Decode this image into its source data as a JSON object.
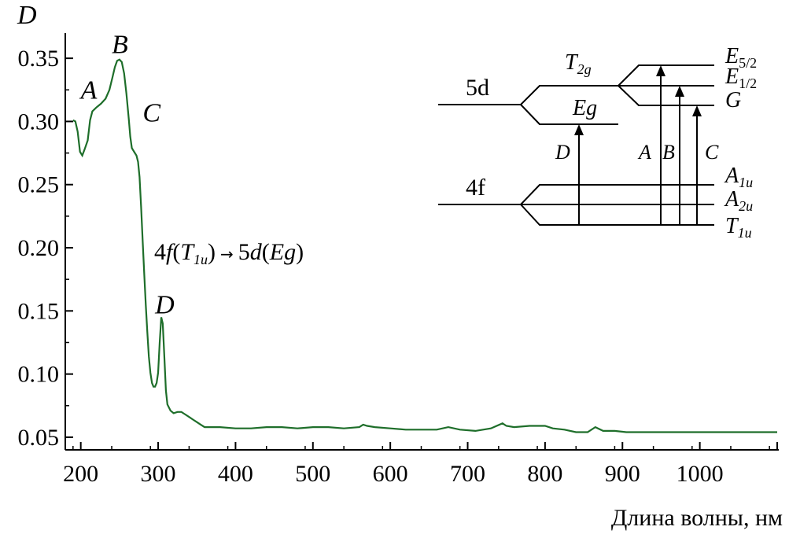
{
  "chart_data": {
    "type": "line",
    "ylabel": "D",
    "xlabel": "Длина волны, нм",
    "xlim": [
      180,
      1100
    ],
    "ylim": [
      0.04,
      0.37
    ],
    "x_ticks": [
      200,
      300,
      400,
      500,
      600,
      700,
      800,
      900,
      1000,
      1100
    ],
    "x_tick_labels": [
      "200",
      "300",
      "400",
      "500",
      "600",
      "700",
      "800",
      "900",
      "1000",
      ""
    ],
    "y_ticks": [
      0.05,
      0.1,
      0.15,
      0.2,
      0.25,
      0.3,
      0.35
    ],
    "y_tick_labels": [
      "0.05",
      "0.10",
      "0.15",
      "0.20",
      "0.25",
      "0.30",
      "0.35"
    ],
    "line_color": "#1e6e2a",
    "series": [
      {
        "points": [
          [
            190,
            0.301
          ],
          [
            193,
            0.3
          ],
          [
            196,
            0.292
          ],
          [
            199,
            0.276
          ],
          [
            202,
            0.273
          ],
          [
            205,
            0.278
          ],
          [
            209,
            0.285
          ],
          [
            212,
            0.301
          ],
          [
            215,
            0.308
          ],
          [
            220,
            0.311
          ],
          [
            226,
            0.314
          ],
          [
            232,
            0.318
          ],
          [
            237,
            0.325
          ],
          [
            241,
            0.335
          ],
          [
            244,
            0.343
          ],
          [
            247,
            0.348
          ],
          [
            250,
            0.349
          ],
          [
            253,
            0.347
          ],
          [
            256,
            0.338
          ],
          [
            259,
            0.322
          ],
          [
            262,
            0.302
          ],
          [
            264,
            0.288
          ],
          [
            266,
            0.279
          ],
          [
            269,
            0.276
          ],
          [
            272,
            0.273
          ],
          [
            274,
            0.268
          ],
          [
            276,
            0.256
          ],
          [
            278,
            0.232
          ],
          [
            280,
            0.205
          ],
          [
            282,
            0.18
          ],
          [
            284,
            0.155
          ],
          [
            286,
            0.133
          ],
          [
            288,
            0.114
          ],
          [
            290,
            0.101
          ],
          [
            292,
            0.093
          ],
          [
            294,
            0.09
          ],
          [
            296,
            0.09
          ],
          [
            298,
            0.093
          ],
          [
            300,
            0.101
          ],
          [
            302,
            0.125
          ],
          [
            304,
            0.145
          ],
          [
            306,
            0.14
          ],
          [
            308,
            0.114
          ],
          [
            310,
            0.087
          ],
          [
            312,
            0.076
          ],
          [
            316,
            0.071
          ],
          [
            320,
            0.069
          ],
          [
            325,
            0.07
          ],
          [
            330,
            0.07
          ],
          [
            335,
            0.068
          ],
          [
            340,
            0.066
          ],
          [
            345,
            0.064
          ],
          [
            350,
            0.062
          ],
          [
            355,
            0.06
          ],
          [
            360,
            0.058
          ],
          [
            380,
            0.058
          ],
          [
            400,
            0.057
          ],
          [
            420,
            0.057
          ],
          [
            440,
            0.058
          ],
          [
            460,
            0.058
          ],
          [
            480,
            0.057
          ],
          [
            500,
            0.058
          ],
          [
            520,
            0.058
          ],
          [
            540,
            0.057
          ],
          [
            560,
            0.058
          ],
          [
            565,
            0.06
          ],
          [
            570,
            0.059
          ],
          [
            580,
            0.058
          ],
          [
            600,
            0.057
          ],
          [
            620,
            0.056
          ],
          [
            640,
            0.056
          ],
          [
            660,
            0.056
          ],
          [
            675,
            0.058
          ],
          [
            690,
            0.056
          ],
          [
            710,
            0.055
          ],
          [
            730,
            0.057
          ],
          [
            745,
            0.061
          ],
          [
            750,
            0.059
          ],
          [
            760,
            0.058
          ],
          [
            780,
            0.059
          ],
          [
            800,
            0.059
          ],
          [
            810,
            0.057
          ],
          [
            825,
            0.056
          ],
          [
            840,
            0.054
          ],
          [
            855,
            0.054
          ],
          [
            865,
            0.058
          ],
          [
            875,
            0.055
          ],
          [
            890,
            0.055
          ],
          [
            905,
            0.054
          ],
          [
            930,
            0.054
          ],
          [
            960,
            0.054
          ],
          [
            990,
            0.054
          ],
          [
            1020,
            0.054
          ],
          [
            1060,
            0.054
          ],
          [
            1100,
            0.054
          ]
        ]
      }
    ],
    "peak_labels": [
      {
        "text": "A",
        "x": 200,
        "y": 0.318
      },
      {
        "text": "B",
        "x": 240,
        "y": 0.354
      },
      {
        "text": "C",
        "x": 280,
        "y": 0.3
      },
      {
        "text": "D",
        "x": 296,
        "y": 0.148
      }
    ],
    "annotation": {
      "prefix": "4",
      "f_part": "f",
      "open1": "(",
      "t_part": "T",
      "t_sub": "1u",
      "close1": ")",
      "arrow": "→",
      "five": "5",
      "d_part": "d",
      "paren_eg": "(",
      "eg": "Eg",
      "close2": ")"
    }
  },
  "diagram": {
    "level_5d": "5d",
    "level_4f": "4f",
    "t2g": {
      "main": "T",
      "sub": "2g"
    },
    "eg": "Eg",
    "e52": {
      "main": "E",
      "sub": "5/2"
    },
    "e12": {
      "main": "E",
      "sub": "1/2"
    },
    "g": "G",
    "a1u": {
      "main": "A",
      "sub": "1u"
    },
    "a2u": {
      "main": "A",
      "sub": "2u"
    },
    "t1u": {
      "main": "T",
      "sub": "1u"
    },
    "transitions": [
      "D",
      "A",
      "B",
      "C"
    ]
  }
}
